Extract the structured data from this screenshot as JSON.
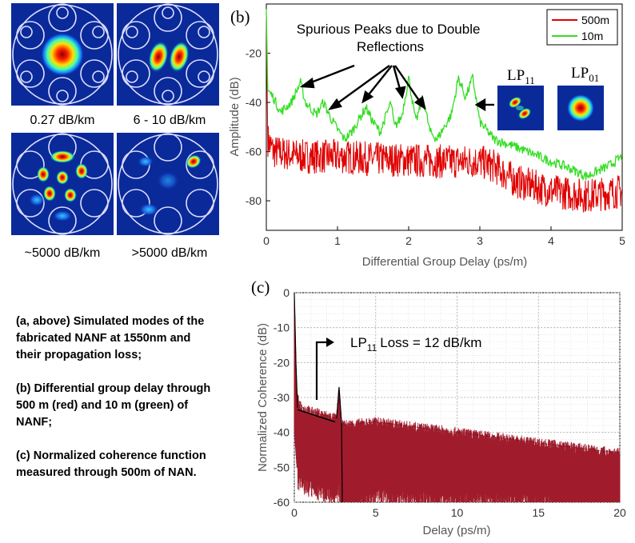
{
  "panel_a": {
    "modes": [
      {
        "loss_label": "0.27 dB/km"
      },
      {
        "loss_label": "6 - 10 dB/km"
      },
      {
        "loss_label": "~5000 dB/km"
      },
      {
        "loss_label": ">5000 dB/km"
      }
    ]
  },
  "caption": {
    "a": "(a, above) Simulated modes of the fabricated NANF at 1550nm and their propagation loss;",
    "b": "(b) Differential group delay through 500 m (red) and 10 m (green) of NANF;",
    "c": "(c) Normalized coherence function measured through 500m of NAN."
  },
  "colors": {
    "red": "#e00000",
    "green": "#33dd22",
    "darkred": "#a01c2c",
    "jet_bg": "#0a2a9a"
  },
  "chart_data": [
    {
      "type": "line",
      "panel_label": "(b)",
      "title": "",
      "xlabel": "Differential Group Delay (ps/m)",
      "ylabel": "Amplitude (dB)",
      "xlim": [
        0,
        5
      ],
      "ylim": [
        -92,
        0
      ],
      "xticks": [
        "0",
        "1",
        "2",
        "3",
        "4",
        "5"
      ],
      "yticks": [
        "-20",
        "-40",
        "-60",
        "-80"
      ],
      "legend": {
        "position": "top-right",
        "entries": [
          "500m",
          "10m"
        ]
      },
      "annotation": "Spurious Peaks due to Double Reflections",
      "inset_labels": {
        "lp11": "LP",
        "lp11_sub": "11",
        "lp01": "LP",
        "lp01_sub": "01"
      },
      "series": [
        {
          "name": "500m",
          "color": "#e00000",
          "x": [
            0,
            0.02,
            0.1,
            0.5,
            1,
            1.5,
            2,
            2.5,
            3,
            3.2,
            3.5,
            4,
            4.5,
            5
          ],
          "y": [
            -5,
            -55,
            -60,
            -62,
            -62,
            -63,
            -63.5,
            -64,
            -64,
            -66,
            -72,
            -76,
            -78,
            -76
          ]
        },
        {
          "name": "10m",
          "color": "#33dd22",
          "x": [
            0,
            0.02,
            0.1,
            0.2,
            0.35,
            0.48,
            0.55,
            0.7,
            0.8,
            0.9,
            1.0,
            1.1,
            1.2,
            1.4,
            1.5,
            1.6,
            1.75,
            1.8,
            1.9,
            2.0,
            2.1,
            2.2,
            2.3,
            2.4,
            2.6,
            2.7,
            2.8,
            2.9,
            3.0,
            3.2,
            3.5,
            4.0,
            4.2,
            4.5,
            4.8,
            5.0
          ],
          "y": [
            -2,
            -35,
            -38,
            -44,
            -40,
            -32,
            -40,
            -45,
            -40,
            -46,
            -51,
            -55,
            -52,
            -42,
            -48,
            -52,
            -40,
            -50,
            -46,
            -30,
            -48,
            -38,
            -52,
            -55,
            -45,
            -30,
            -38,
            -30,
            -48,
            -55,
            -58,
            -64,
            -66,
            -70,
            -66,
            -62
          ]
        }
      ]
    },
    {
      "type": "area",
      "panel_label": "(c)",
      "title": "",
      "xlabel": "Delay (ps/m)",
      "ylabel": "Normalized Coherence (dB)",
      "xlim": [
        0,
        20
      ],
      "ylim": [
        -60,
        0
      ],
      "xticks": [
        "0",
        "5",
        "10",
        "15",
        "20"
      ],
      "yticks": [
        "0",
        "-10",
        "-20",
        "-30",
        "-40",
        "-50",
        "-60"
      ],
      "annotation": "Loss = 12 dB/km",
      "annotation_lp": "LP",
      "annotation_sub": "11",
      "series": [
        {
          "name": "500m",
          "color": "#a01c2c",
          "x": [
            0,
            0.15,
            0.5,
            1,
            2.6,
            2.75,
            2.9,
            5,
            10,
            15,
            20
          ],
          "upper": [
            0,
            -30,
            -33,
            -34,
            -36,
            -27,
            -38,
            -37,
            -40,
            -43,
            -46
          ],
          "lower": [
            -40,
            -50,
            -52,
            -53,
            -55,
            -55,
            -60,
            -56,
            -57,
            -58,
            -60
          ]
        },
        {
          "name": "fit",
          "color": "#000000",
          "x": [
            0.2,
            2.5
          ],
          "y": [
            -33.5,
            -37
          ]
        }
      ]
    }
  ]
}
